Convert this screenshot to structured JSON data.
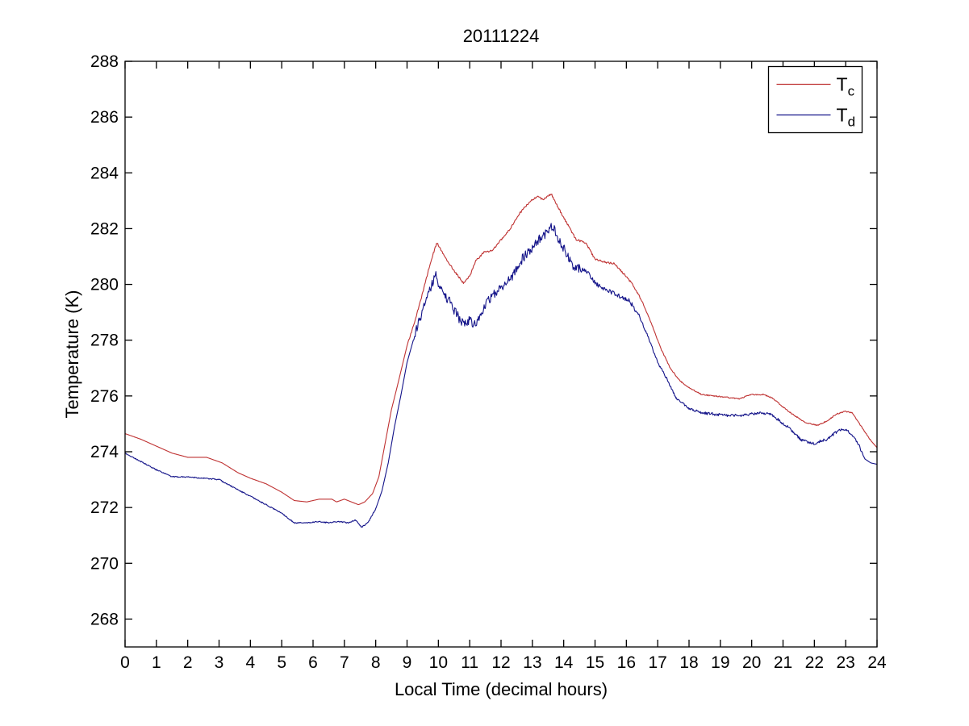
{
  "chart_data": {
    "type": "line",
    "title": "20111224",
    "xlabel": "Local Time (decimal hours)",
    "ylabel": "Temperature (K)",
    "xlim": [
      0,
      24
    ],
    "ylim": [
      267,
      288
    ],
    "xticks": [
      0,
      1,
      2,
      3,
      4,
      5,
      6,
      7,
      8,
      9,
      10,
      11,
      12,
      13,
      14,
      15,
      16,
      17,
      18,
      19,
      20,
      21,
      22,
      23,
      24
    ],
    "yticks": [
      268,
      270,
      272,
      274,
      276,
      278,
      280,
      282,
      284,
      286,
      288
    ],
    "grid": false,
    "background": "#ffffff",
    "axis_color": "#000000",
    "legend": {
      "position": "top-right",
      "entries": [
        {
          "label_main": "T",
          "label_sub": "c",
          "color": "#bf3232"
        },
        {
          "label_main": "T",
          "label_sub": "d",
          "color": "#131389"
        }
      ]
    },
    "series": [
      {
        "name": "Tc",
        "color": "#bf3232",
        "line_width": 1.1,
        "seed": 101,
        "noise": [
          {
            "from": 9.0,
            "to": 16.5,
            "amp": 0.035
          },
          {
            "from": 16.5,
            "to": 23.8,
            "amp": 0.02
          }
        ],
        "points": [
          [
            0,
            274.65
          ],
          [
            0.5,
            274.45
          ],
          [
            1,
            274.2
          ],
          [
            1.5,
            273.95
          ],
          [
            2,
            273.8
          ],
          [
            2.6,
            273.8
          ],
          [
            3.1,
            273.6
          ],
          [
            3.6,
            273.25
          ],
          [
            4,
            273.05
          ],
          [
            4.5,
            272.85
          ],
          [
            5,
            272.55
          ],
          [
            5.4,
            272.25
          ],
          [
            5.8,
            272.2
          ],
          [
            6.2,
            272.3
          ],
          [
            6.6,
            272.3
          ],
          [
            6.75,
            272.2
          ],
          [
            7,
            272.3
          ],
          [
            7.45,
            272.1
          ],
          [
            7.65,
            272.2
          ],
          [
            7.9,
            272.5
          ],
          [
            8.1,
            273.1
          ],
          [
            8.3,
            274.3
          ],
          [
            8.5,
            275.5
          ],
          [
            8.7,
            276.4
          ],
          [
            9,
            277.8
          ],
          [
            9.25,
            278.7
          ],
          [
            9.5,
            279.7
          ],
          [
            9.75,
            280.8
          ],
          [
            9.95,
            281.5
          ],
          [
            10.2,
            281
          ],
          [
            10.5,
            280.5
          ],
          [
            10.8,
            280.05
          ],
          [
            11,
            280.3
          ],
          [
            11.2,
            280.85
          ],
          [
            11.45,
            281.15
          ],
          [
            11.7,
            281.2
          ],
          [
            12,
            281.6
          ],
          [
            12.3,
            282
          ],
          [
            12.6,
            282.55
          ],
          [
            12.9,
            282.95
          ],
          [
            13.15,
            283.15
          ],
          [
            13.35,
            283.05
          ],
          [
            13.6,
            283.25
          ],
          [
            13.8,
            282.8
          ],
          [
            14.1,
            282.2
          ],
          [
            14.4,
            281.6
          ],
          [
            14.7,
            281.5
          ],
          [
            15,
            280.9
          ],
          [
            15.3,
            280.8
          ],
          [
            15.6,
            280.75
          ],
          [
            15.9,
            280.4
          ],
          [
            16.2,
            280
          ],
          [
            16.5,
            279.4
          ],
          [
            16.8,
            278.6
          ],
          [
            17.1,
            277.7
          ],
          [
            17.4,
            277
          ],
          [
            17.7,
            276.55
          ],
          [
            18,
            276.3
          ],
          [
            18.4,
            276.05
          ],
          [
            18.8,
            276
          ],
          [
            19.2,
            275.95
          ],
          [
            19.6,
            275.9
          ],
          [
            20,
            276.05
          ],
          [
            20.4,
            276.05
          ],
          [
            20.7,
            275.9
          ],
          [
            21,
            275.6
          ],
          [
            21.3,
            275.35
          ],
          [
            21.7,
            275.05
          ],
          [
            22.1,
            274.95
          ],
          [
            22.4,
            275.1
          ],
          [
            22.7,
            275.35
          ],
          [
            23,
            275.45
          ],
          [
            23.2,
            275.4
          ],
          [
            23.5,
            274.9
          ],
          [
            23.8,
            274.4
          ],
          [
            24,
            274.15
          ]
        ]
      },
      {
        "name": "Td",
        "color": "#131389",
        "line_width": 1.1,
        "seed": 202,
        "noise": [
          {
            "from": 0,
            "to": 8,
            "amp": 0.02
          },
          {
            "from": 9.2,
            "to": 14.6,
            "amp": 0.17
          },
          {
            "from": 14.6,
            "to": 16.3,
            "amp": 0.08
          },
          {
            "from": 16.3,
            "to": 18.5,
            "amp": 0.04
          },
          {
            "from": 18.5,
            "to": 23.6,
            "amp": 0.05
          }
        ],
        "points": [
          [
            0,
            273.95
          ],
          [
            0.5,
            273.65
          ],
          [
            1,
            273.35
          ],
          [
            1.5,
            273.1
          ],
          [
            2,
            273.1
          ],
          [
            2.5,
            273.05
          ],
          [
            3,
            273
          ],
          [
            3.5,
            272.7
          ],
          [
            4,
            272.4
          ],
          [
            4.5,
            272.1
          ],
          [
            5,
            271.8
          ],
          [
            5.4,
            271.45
          ],
          [
            5.8,
            271.45
          ],
          [
            6.2,
            271.5
          ],
          [
            6.5,
            271.45
          ],
          [
            6.8,
            271.5
          ],
          [
            7.1,
            271.45
          ],
          [
            7.35,
            271.55
          ],
          [
            7.55,
            271.3
          ],
          [
            7.75,
            271.45
          ],
          [
            8,
            271.95
          ],
          [
            8.2,
            272.6
          ],
          [
            8.4,
            273.6
          ],
          [
            8.6,
            274.9
          ],
          [
            8.8,
            276
          ],
          [
            9,
            277.2
          ],
          [
            9.25,
            278.2
          ],
          [
            9.5,
            279.1
          ],
          [
            9.75,
            279.9
          ],
          [
            9.92,
            280.3
          ],
          [
            10.1,
            279.8
          ],
          [
            10.35,
            279.4
          ],
          [
            10.6,
            278.9
          ],
          [
            10.8,
            278.55
          ],
          [
            11,
            278.7
          ],
          [
            11.2,
            278.55
          ],
          [
            11.45,
            279.2
          ],
          [
            11.7,
            279.6
          ],
          [
            12,
            279.9
          ],
          [
            12.3,
            280.2
          ],
          [
            12.6,
            280.8
          ],
          [
            12.9,
            281.2
          ],
          [
            13.2,
            281.6
          ],
          [
            13.45,
            281.85
          ],
          [
            13.65,
            282.1
          ],
          [
            13.85,
            281.6
          ],
          [
            14.05,
            281.2
          ],
          [
            14.3,
            280.6
          ],
          [
            14.7,
            280.5
          ],
          [
            15.05,
            280
          ],
          [
            15.45,
            279.75
          ],
          [
            15.85,
            279.55
          ],
          [
            16.1,
            279.4
          ],
          [
            16.4,
            278.9
          ],
          [
            16.7,
            278.1
          ],
          [
            17,
            277.2
          ],
          [
            17.3,
            276.6
          ],
          [
            17.6,
            275.9
          ],
          [
            18,
            275.55
          ],
          [
            18.4,
            275.4
          ],
          [
            18.8,
            275.35
          ],
          [
            19.2,
            275.3
          ],
          [
            19.6,
            275.3
          ],
          [
            20,
            275.35
          ],
          [
            20.3,
            275.4
          ],
          [
            20.6,
            275.35
          ],
          [
            20.9,
            275.1
          ],
          [
            21.2,
            274.85
          ],
          [
            21.6,
            274.4
          ],
          [
            22,
            274.3
          ],
          [
            22.4,
            274.45
          ],
          [
            22.75,
            274.75
          ],
          [
            23,
            274.8
          ],
          [
            23.2,
            274.6
          ],
          [
            23.4,
            274.3
          ],
          [
            23.6,
            273.75
          ],
          [
            23.8,
            273.6
          ],
          [
            24,
            273.55
          ]
        ]
      }
    ]
  }
}
